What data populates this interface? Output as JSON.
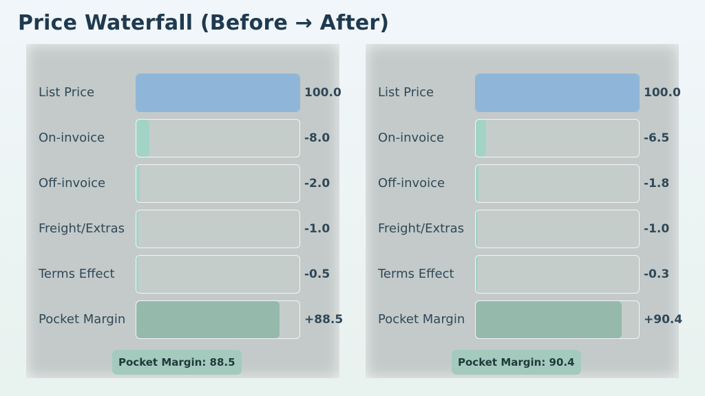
{
  "title": "Price Waterfall (Before → After)",
  "colors": {
    "list_price": "#8fb6d9",
    "deduction": "#a2d4c6",
    "pocket_margin": "#95b9ab",
    "panel": "#c3cac9",
    "text": "#2f4858"
  },
  "chart_data": [
    {
      "type": "bar",
      "orientation": "horizontal",
      "scale_max": 100,
      "categories": [
        "List Price",
        "On-invoice",
        "Off-invoice",
        "Freight/Extras",
        "Terms Effect",
        "Pocket Margin"
      ],
      "values": [
        100.0,
        -8.0,
        -2.0,
        -1.0,
        -0.5,
        88.5
      ],
      "value_labels": [
        "100.0",
        "-8.0",
        "-2.0",
        "-1.0",
        "-0.5",
        "+88.5"
      ],
      "badge": "Pocket Margin: 88.5"
    },
    {
      "type": "bar",
      "orientation": "horizontal",
      "scale_max": 100,
      "categories": [
        "List Price",
        "On-invoice",
        "Off-invoice",
        "Freight/Extras",
        "Terms Effect",
        "Pocket Margin"
      ],
      "values": [
        100.0,
        -6.5,
        -1.8,
        -1.0,
        -0.3,
        90.4
      ],
      "value_labels": [
        "100.0",
        "-6.5",
        "-1.8",
        "-1.0",
        "-0.3",
        "+90.4"
      ],
      "badge": "Pocket Margin: 90.4"
    }
  ]
}
